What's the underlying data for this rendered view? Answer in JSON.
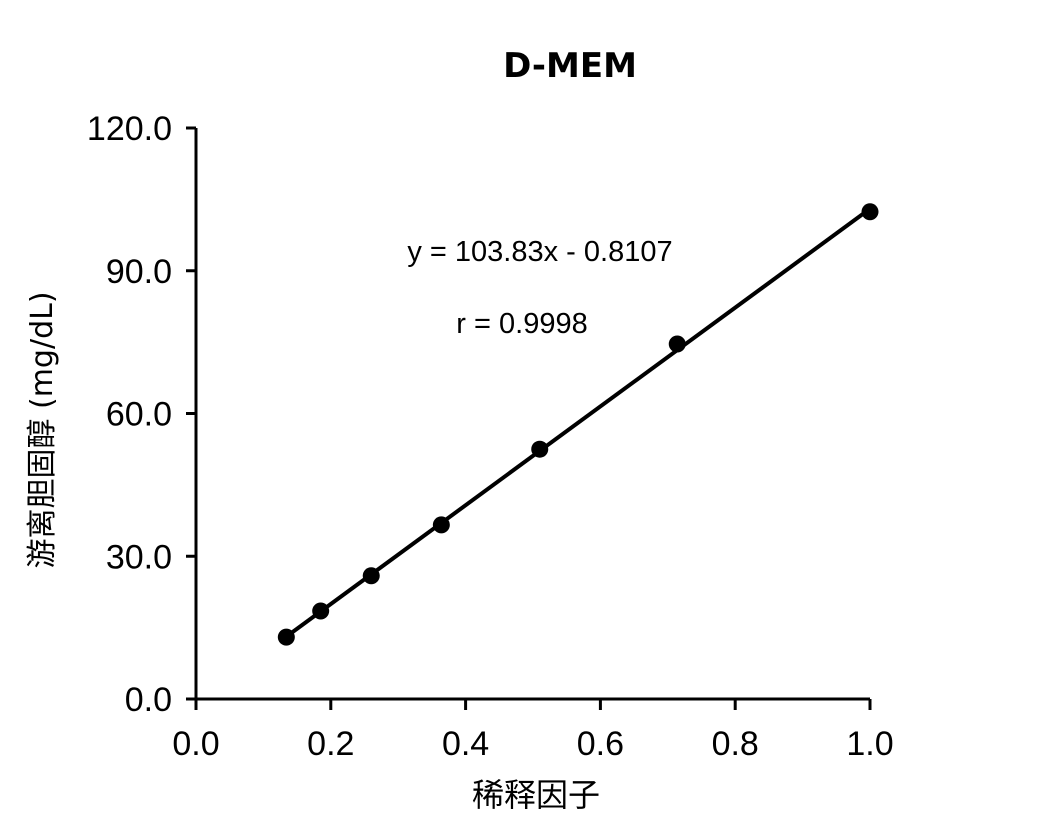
{
  "chart_data": {
    "type": "scatter",
    "title": "D-MEM",
    "xlabel": "稀释因子",
    "ylabel": "游离胆固醇 (mg/dL)",
    "xlim": [
      0.0,
      1.0
    ],
    "ylim": [
      0.0,
      120.0
    ],
    "x_ticks": [
      "0.0",
      "0.2",
      "0.4",
      "0.6",
      "0.8",
      "1.0"
    ],
    "y_ticks": [
      "0.0",
      "30.0",
      "60.0",
      "90.0",
      "120.0"
    ],
    "grid": false,
    "legend": null,
    "series": [
      {
        "name": "D-MEM",
        "marker": "circle",
        "color": "#000000",
        "x": [
          0.134,
          0.185,
          0.26,
          0.364,
          0.51,
          0.714,
          1.0
        ],
        "y": [
          13.0,
          18.5,
          25.9,
          36.6,
          52.5,
          74.6,
          102.4
        ]
      }
    ],
    "trendline": {
      "type": "linear",
      "slope": 103.83,
      "intercept": -0.8107,
      "x_range": [
        0.134,
        1.0
      ]
    },
    "annotations": [
      {
        "text": "y = 103.83x - 0.8107"
      },
      {
        "text": "r = 0.9998"
      }
    ]
  }
}
